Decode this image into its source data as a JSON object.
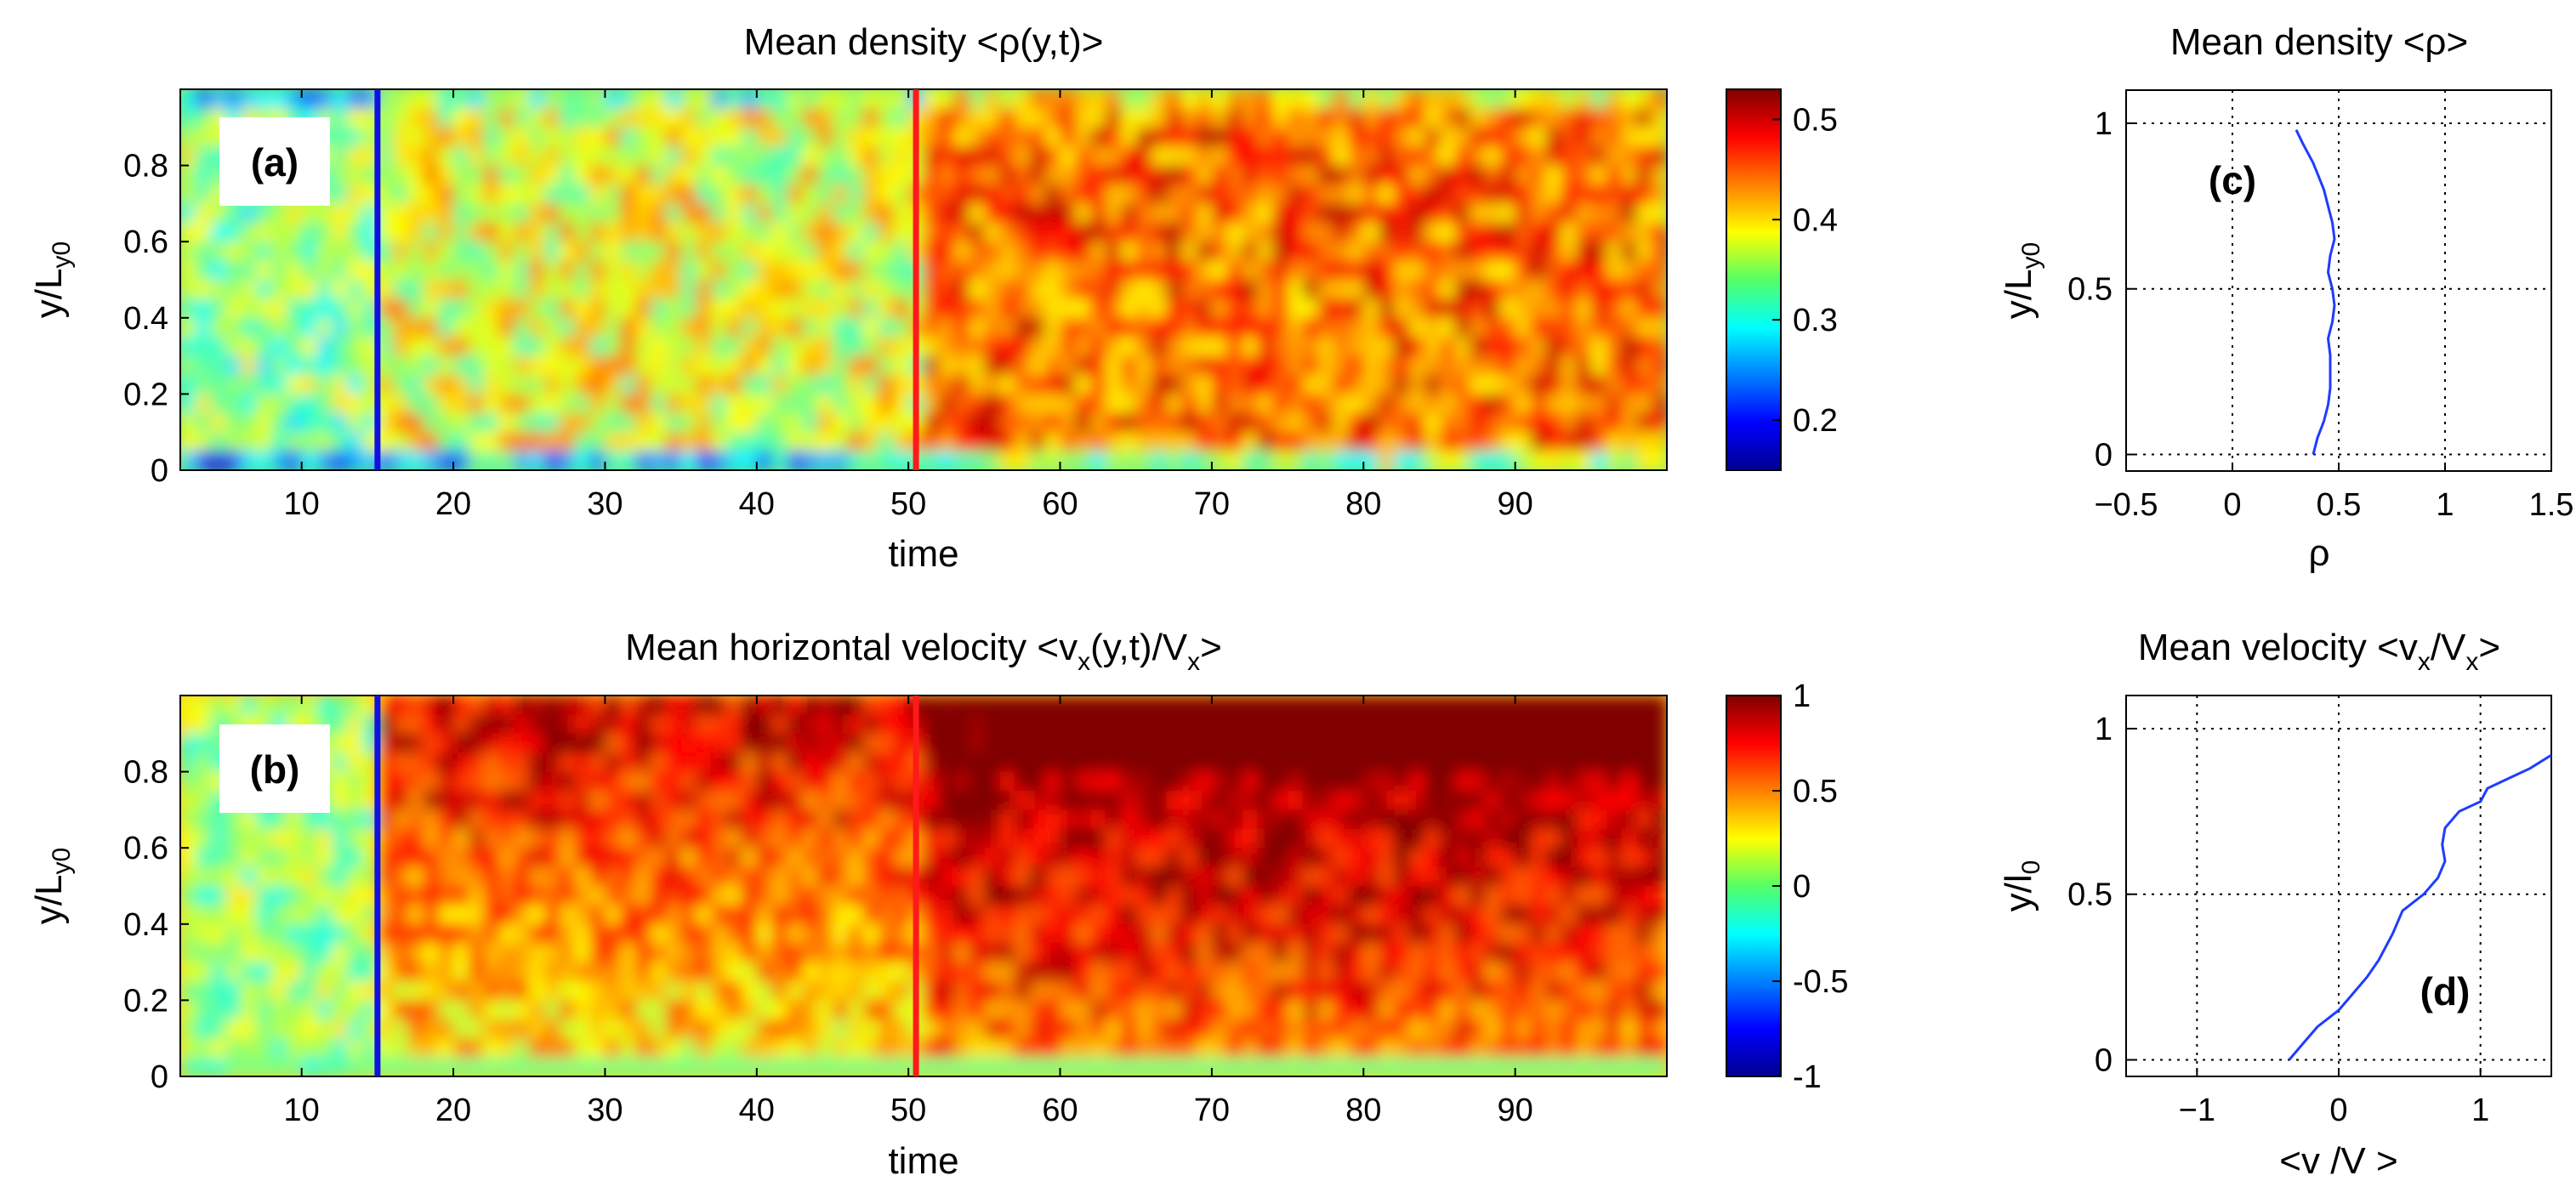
{
  "chart_data": [
    {
      "id": "a",
      "type": "heatmap",
      "panel_label": "(a)",
      "title": "Mean density <ρ(y,t)>",
      "xlabel": "time",
      "ylabel": "y/L",
      "ylabel_sub": "y0",
      "xlim": [
        2,
        100
      ],
      "ylim": [
        0,
        1
      ],
      "xticks": [
        10,
        20,
        30,
        40,
        50,
        60,
        70,
        80,
        90
      ],
      "yticks": [
        0,
        0.2,
        0.4,
        0.6,
        0.8
      ],
      "ytick_labels": [
        "0",
        "0.2",
        "0.4",
        "0.6",
        "0.8"
      ],
      "colorbar": {
        "min": 0.15,
        "max": 0.53,
        "ticks": [
          0.2,
          0.3,
          0.4,
          0.5
        ],
        "tick_labels": [
          "0.2",
          "0.3",
          "0.4",
          "0.5"
        ]
      },
      "markers": [
        {
          "time": 15,
          "color": "#1010e0"
        },
        {
          "time": 50.5,
          "color": "#ff1a1a"
        }
      ],
      "field_summary": [
        {
          "t_start": 2,
          "t_end": 15,
          "mean": 0.34
        },
        {
          "t_start": 15,
          "t_end": 50.5,
          "mean": 0.38
        },
        {
          "t_start": 50.5,
          "t_end": 100,
          "mean": 0.45
        }
      ]
    },
    {
      "id": "b",
      "type": "heatmap",
      "panel_label": "(b)",
      "title": "Mean horizontal velocity <v",
      "title_sub1": "x",
      "title_mid": "(y,t)/V",
      "title_sub2": "x",
      "title_end": ">",
      "xlabel": "time",
      "ylabel": "y/L",
      "ylabel_sub": "y0",
      "xlim": [
        2,
        100
      ],
      "ylim": [
        0,
        1
      ],
      "xticks": [
        10,
        20,
        30,
        40,
        50,
        60,
        70,
        80,
        90
      ],
      "yticks": [
        0,
        0.2,
        0.4,
        0.6,
        0.8
      ],
      "ytick_labels": [
        "0",
        "0.2",
        "0.4",
        "0.6",
        "0.8"
      ],
      "colorbar": {
        "min": -1,
        "max": 1,
        "ticks": [
          -1,
          -0.5,
          0,
          0.5,
          1
        ],
        "tick_labels": [
          "-1",
          "-0.5",
          "0",
          "0.5",
          "1"
        ]
      },
      "markers": [
        {
          "time": 15,
          "color": "#1010e0"
        },
        {
          "time": 50.5,
          "color": "#ff1a1a"
        }
      ],
      "field_summary": [
        {
          "t_start": 2,
          "t_end": 15,
          "mean": 0.05
        },
        {
          "t_start": 15,
          "t_end": 50.5,
          "mean": 0.55
        },
        {
          "t_start": 50.5,
          "t_end": 100,
          "mean": 0.8
        }
      ]
    },
    {
      "id": "c",
      "type": "line",
      "panel_label": "(c)",
      "title": "Mean density <ρ>",
      "xlabel": "ρ",
      "ylabel": "y/L",
      "ylabel_sub": "y0",
      "xlim": [
        -0.5,
        1.5
      ],
      "ylim": [
        -0.05,
        1.1
      ],
      "xticks": [
        -0.5,
        0,
        0.5,
        1,
        1.5
      ],
      "xtick_labels": [
        "−0.5",
        "0",
        "0.5",
        "1",
        "1.5"
      ],
      "yticks": [
        0,
        0.5,
        1
      ],
      "ytick_labels": [
        "0",
        "0.5",
        "1"
      ],
      "grid": true,
      "line_color": "#1f3cff",
      "x": [
        0.38,
        0.4,
        0.43,
        0.45,
        0.46,
        0.46,
        0.45,
        0.47,
        0.48,
        0.47,
        0.45,
        0.46,
        0.48,
        0.47,
        0.43,
        0.38,
        0.33,
        0.3
      ],
      "y": [
        0.0,
        0.05,
        0.1,
        0.15,
        0.2,
        0.3,
        0.35,
        0.4,
        0.45,
        0.5,
        0.55,
        0.6,
        0.65,
        0.7,
        0.8,
        0.88,
        0.94,
        0.98
      ]
    },
    {
      "id": "d",
      "type": "line",
      "panel_label": "(d)",
      "title": "Mean velocity <v",
      "title_sub1": "x",
      "title_mid": "/V",
      "title_sub2": "x",
      "title_end": ">",
      "xlabel": "<v /V >",
      "ylabel": "y/l",
      "ylabel_sub": "0",
      "ylabel_y": "y",
      "xlim": [
        -1.5,
        1.5
      ],
      "ylim": [
        -0.05,
        1.1
      ],
      "xticks": [
        -1,
        0,
        1
      ],
      "xtick_labels": [
        "−1",
        "0",
        "1"
      ],
      "yticks": [
        0,
        0.5,
        1
      ],
      "ytick_labels": [
        "0",
        "0.5",
        "1"
      ],
      "grid": true,
      "line_color": "#1f3cff",
      "x": [
        -0.35,
        -0.25,
        -0.15,
        0.0,
        0.1,
        0.2,
        0.28,
        0.38,
        0.45,
        0.6,
        0.7,
        0.75,
        0.73,
        0.75,
        0.85,
        1.0,
        1.05,
        1.2,
        1.35,
        1.5
      ],
      "y": [
        0.0,
        0.05,
        0.1,
        0.15,
        0.2,
        0.25,
        0.3,
        0.38,
        0.45,
        0.5,
        0.55,
        0.6,
        0.65,
        0.7,
        0.75,
        0.78,
        0.82,
        0.85,
        0.88,
        0.92
      ]
    }
  ]
}
